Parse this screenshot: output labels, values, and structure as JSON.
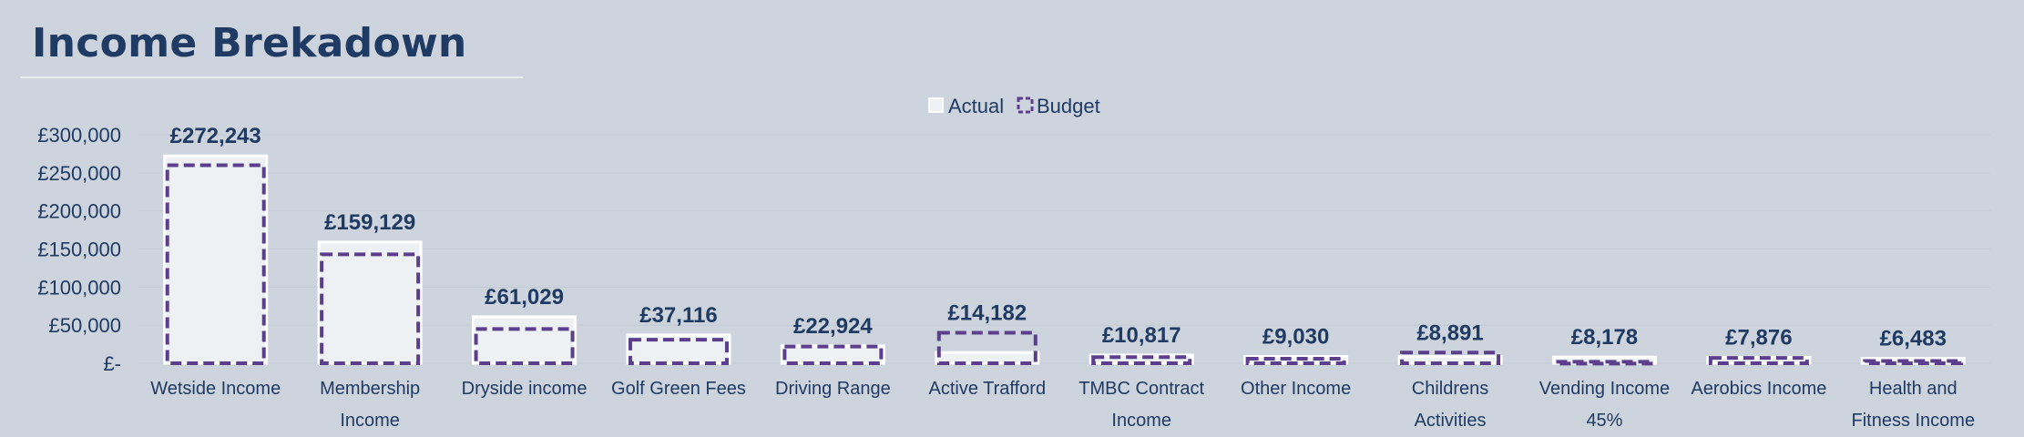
{
  "page": {
    "title": "Income Brekadown"
  },
  "colors": {
    "background": "#cdd4dd",
    "actual_fill": "#eef1f4",
    "actual_stroke": "#ffffff",
    "budget_stroke": "#5b3f8c",
    "text": "#1f3a63",
    "gridline": "#c2cad4"
  },
  "chart_data": {
    "type": "bar",
    "title": "Income Brekadown",
    "xlabel": "",
    "ylabel": "",
    "ylim": [
      0,
      300000
    ],
    "yticks": [
      0,
      50000,
      100000,
      150000,
      200000,
      250000,
      300000
    ],
    "ytick_labels": [
      "£-",
      "£50,000",
      "£100,000",
      "£150,000",
      "£200,000",
      "£250,000",
      "£300,000"
    ],
    "grid": true,
    "legend_position": "top-center",
    "categories": [
      [
        "Wetside Income"
      ],
      [
        "Membership",
        "Income"
      ],
      [
        "Dryside income"
      ],
      [
        "Golf Green Fees"
      ],
      [
        "Driving Range"
      ],
      [
        "Active Trafford"
      ],
      [
        "TMBC Contract",
        "Income"
      ],
      [
        "Other Income"
      ],
      [
        "Childrens",
        "Activities"
      ],
      [
        "Vending Income",
        "45%"
      ],
      [
        "Aerobics Income"
      ],
      [
        "Health and",
        "Fitness Income"
      ]
    ],
    "series": [
      {
        "name": "Actual",
        "style": "solid-white",
        "values": [
          272243,
          159129,
          61029,
          37116,
          22924,
          14182,
          10817,
          9030,
          8891,
          8178,
          7876,
          6483
        ],
        "data_labels": [
          "£272,243",
          "£159,129",
          "£61,029",
          "£37,116",
          "£22,924",
          "£14,182",
          "£10,817",
          "£9,030",
          "£8,891",
          "£8,178",
          "£7,876",
          "£6,483"
        ]
      },
      {
        "name": "Budget",
        "style": "dashed-outline",
        "values": [
          260000,
          143000,
          45000,
          31000,
          22000,
          40000,
          8000,
          6000,
          14000,
          2000,
          7000,
          3000
        ]
      }
    ]
  }
}
